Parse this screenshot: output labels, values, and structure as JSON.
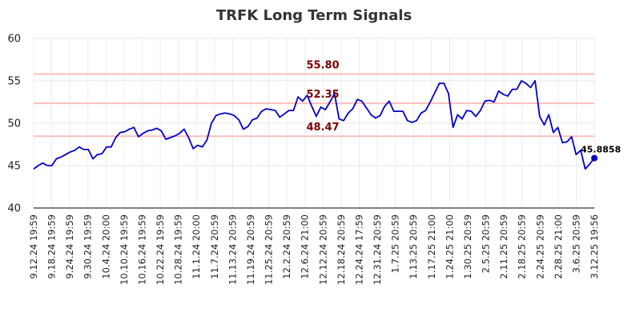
{
  "chart_data": {
    "type": "line",
    "title": "TRFK Long Term Signals",
    "ylim": [
      40,
      60
    ],
    "yticks": [
      40,
      45,
      50,
      55,
      60
    ],
    "grid": true,
    "xtick_labels": [
      "9.12.24 19:59",
      "9.18.24 19:59",
      "9.24.24 19:59",
      "9.30.24 19:59",
      "10.4.24 20:00",
      "10.10.24 19:59",
      "10.16.24 19:59",
      "10.22.24 19:59",
      "10.28.24 19:59",
      "11.1.24 20:00",
      "11.7.24 20:59",
      "11.13.24 20:59",
      "11.19.24 20:59",
      "11.25.24 20:59",
      "12.2.24 20:59",
      "12.6.24 21:00",
      "12.12.24 20:59",
      "12.18.24 20:59",
      "12.24.24 17:59",
      "12.31.24 20:59",
      "1.7.25 20:59",
      "1.13.25 20:59",
      "1.17.25 21:00",
      "1.24.25 21:00",
      "1.30.25 20:59",
      "2.5.25 20:59",
      "2.11.25 20:59",
      "2.18.25 20:59",
      "2.24.25 20:59",
      "2.28.25 21:00",
      "3.6.25 20:59",
      "3.12.25 19:56"
    ],
    "reference_lines": [
      {
        "value": 55.8,
        "label": "55.80",
        "color": "#ffbdbd"
      },
      {
        "value": 52.35,
        "label": "52.35",
        "color": "#ffbdbd"
      },
      {
        "value": 48.47,
        "label": "48.47",
        "color": "#ffbdbd"
      }
    ],
    "series": [
      {
        "color": "#0000cc",
        "values": [
          44.6,
          45.0,
          45.3,
          45.0,
          45.0,
          45.8,
          46.0,
          46.3,
          46.6,
          46.8,
          47.2,
          46.9,
          46.9,
          45.8,
          46.3,
          46.4,
          47.2,
          47.2,
          48.3,
          48.9,
          49.0,
          49.3,
          49.5,
          48.4,
          48.8,
          49.1,
          49.2,
          49.4,
          49.1,
          48.1,
          48.3,
          48.5,
          48.8,
          49.3,
          48.3,
          47.0,
          47.4,
          47.2,
          48.0,
          50.0,
          50.9,
          51.1,
          51.2,
          51.1,
          50.9,
          50.4,
          49.3,
          49.6,
          50.4,
          50.6,
          51.4,
          51.7,
          51.6,
          51.5,
          50.7,
          51.1,
          51.5,
          51.5,
          53.1,
          52.6,
          53.3,
          52.0,
          50.8,
          51.9,
          51.6,
          52.5,
          53.5,
          50.5,
          50.3,
          51.2,
          51.7,
          52.8,
          52.6,
          51.8,
          51.0,
          50.6,
          50.9,
          52.0,
          52.6,
          51.4,
          51.4,
          51.4,
          50.3,
          50.1,
          50.3,
          51.2,
          51.5,
          52.5,
          53.6,
          54.7,
          54.7,
          53.5,
          49.5,
          51.0,
          50.5,
          51.5,
          51.4,
          50.8,
          51.5,
          52.6,
          52.7,
          52.5,
          53.8,
          53.4,
          53.2,
          54.0,
          54.0,
          55.0,
          54.7,
          54.2,
          55.0,
          50.8,
          49.8,
          51.0,
          48.9,
          49.5,
          47.7,
          47.8,
          48.4,
          46.3,
          46.8,
          44.6,
          45.2,
          45.8858
        ]
      }
    ],
    "last_point_label": "45.8858"
  }
}
